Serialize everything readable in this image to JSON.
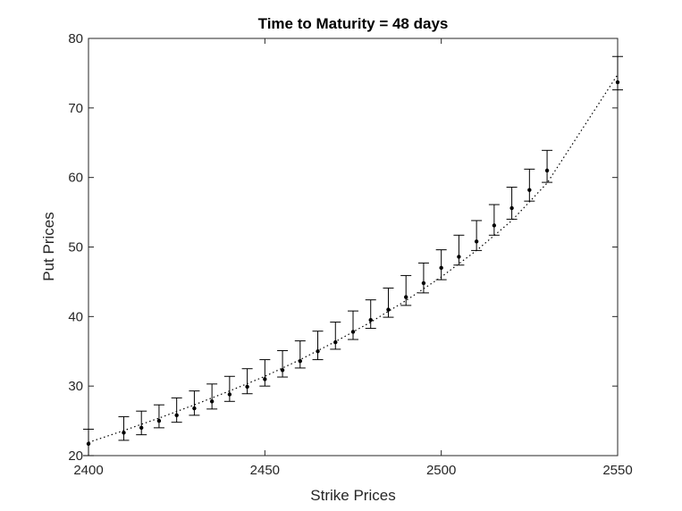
{
  "chart_data": {
    "type": "scatter",
    "title": "Time to Maturity = 48 days",
    "xlabel": "Strike Prices",
    "ylabel": "Put Prices",
    "xlim": [
      2400,
      2550
    ],
    "ylim": [
      20,
      80
    ],
    "xticks": [
      2400,
      2450,
      2500,
      2550
    ],
    "yticks": [
      20,
      30,
      40,
      50,
      60,
      70,
      80
    ],
    "grid": false,
    "series": [
      {
        "x": [
          2400,
          2410,
          2415,
          2420,
          2425,
          2430,
          2435,
          2440,
          2445,
          2450,
          2455,
          2460,
          2465,
          2470,
          2475,
          2480,
          2485,
          2490,
          2495,
          2500,
          2505,
          2510,
          2515,
          2520,
          2525,
          2530,
          2550
        ],
        "y": [
          21.7,
          23.3,
          24.0,
          25.0,
          25.8,
          26.8,
          27.8,
          28.8,
          29.9,
          31.0,
          32.3,
          33.6,
          35.0,
          36.3,
          37.8,
          39.5,
          41.0,
          42.8,
          44.8,
          47.0,
          48.6,
          50.8,
          53.1,
          55.6,
          58.2,
          61.0,
          73.7
        ],
        "upper": [
          23.8,
          25.6,
          26.4,
          27.3,
          28.3,
          29.3,
          30.3,
          31.4,
          32.5,
          33.8,
          35.1,
          36.5,
          37.9,
          39.2,
          40.8,
          42.4,
          44.1,
          45.9,
          47.7,
          49.6,
          51.7,
          53.8,
          56.1,
          58.6,
          61.2,
          63.9,
          77.4
        ],
        "lower": [
          20.0,
          22.2,
          23.0,
          24.0,
          24.8,
          25.8,
          26.7,
          27.8,
          28.9,
          30.0,
          31.3,
          32.6,
          33.8,
          35.3,
          36.7,
          38.3,
          39.9,
          41.6,
          43.4,
          45.3,
          47.4,
          49.5,
          51.7,
          54.0,
          56.6,
          59.3,
          72.6
        ]
      }
    ],
    "fit_line": {
      "style": "dotted",
      "x": [
        2400,
        2410,
        2420,
        2430,
        2440,
        2450,
        2460,
        2470,
        2480,
        2490,
        2500,
        2510,
        2520,
        2530,
        2550
      ],
      "y": [
        21.9,
        23.6,
        25.4,
        27.3,
        29.3,
        31.4,
        33.8,
        36.4,
        39.2,
        42.3,
        45.7,
        49.5,
        53.8,
        59.2,
        74.8
      ]
    }
  }
}
